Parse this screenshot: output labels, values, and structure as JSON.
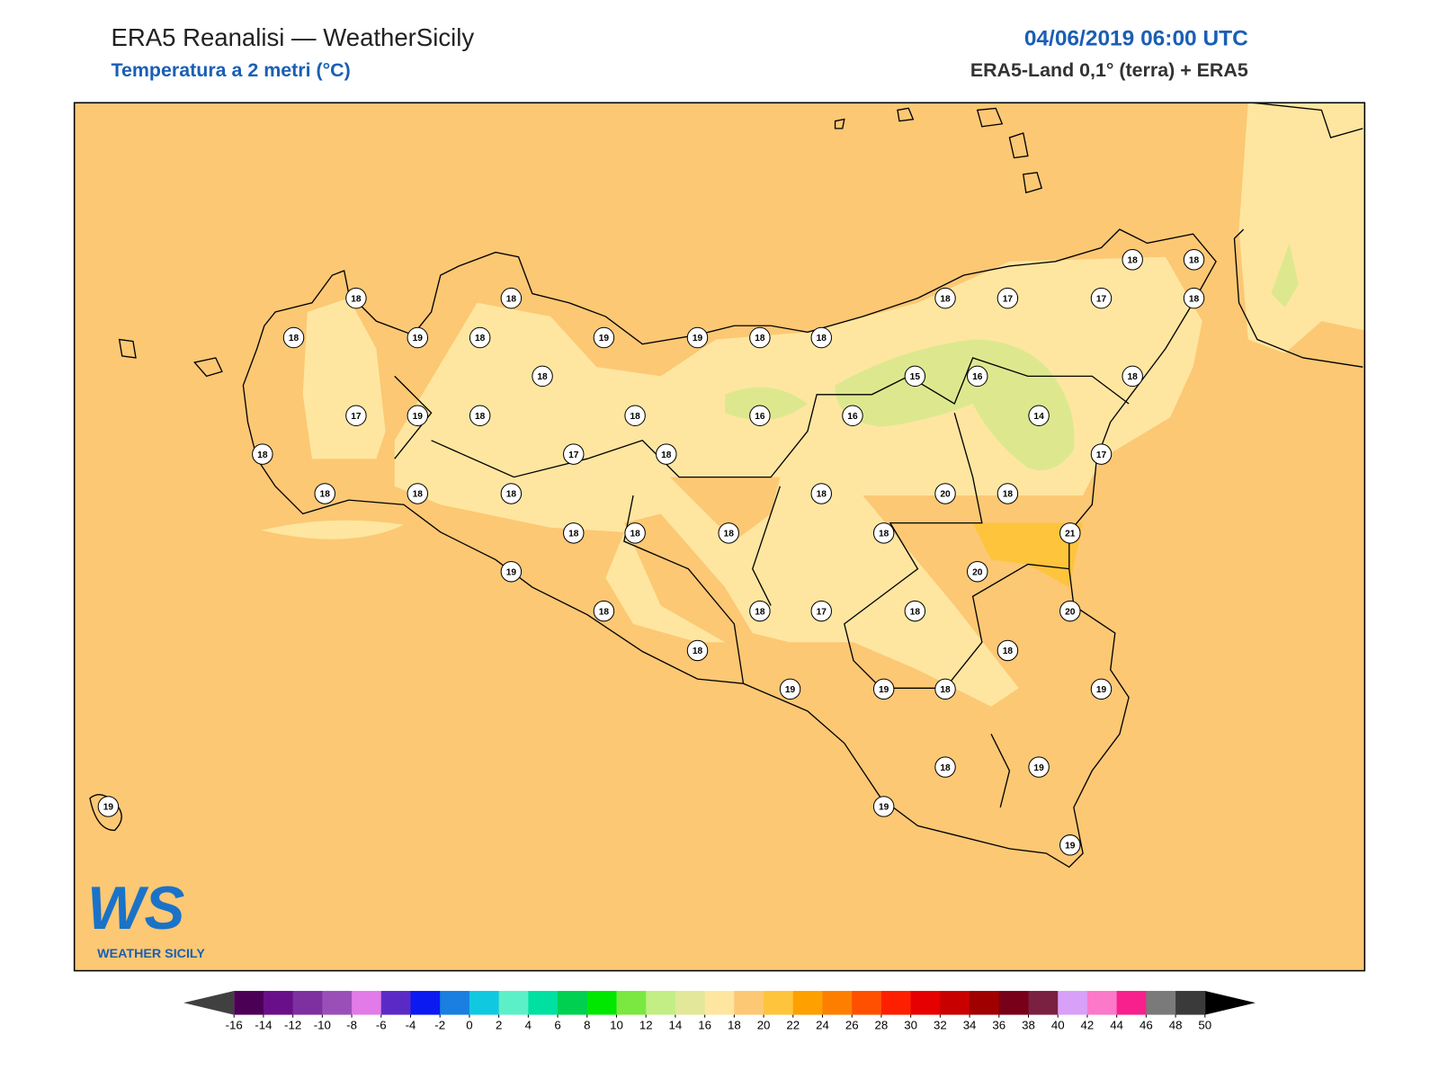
{
  "header": {
    "title": "ERA5 Reanalisi — WeatherSicily",
    "subtitle": "Temperatura a 2 metri (°C)",
    "datetime": "04/06/2019 06:00 UTC",
    "source": "ERA5-Land 0,1° (terra) + ERA5"
  },
  "stations": [
    18,
    18,
    19,
    18,
    18,
    19,
    19,
    18,
    18,
    18,
    17,
    19,
    18,
    18,
    16,
    16,
    15,
    16,
    14,
    18,
    17,
    17,
    18,
    18,
    18,
    18,
    17,
    18,
    18,
    18,
    18,
    17,
    18,
    18,
    20,
    18,
    18,
    18,
    18,
    18,
    21,
    19,
    20,
    18,
    18,
    17,
    18,
    20,
    18,
    18,
    19,
    19,
    18,
    19,
    18,
    19,
    19,
    19,
    19
  ],
  "colorbar": {
    "ticks": [
      -16,
      -14,
      -12,
      -10,
      -8,
      -6,
      -4,
      -2,
      0,
      2,
      4,
      6,
      8,
      10,
      12,
      14,
      16,
      18,
      20,
      22,
      24,
      26,
      28,
      30,
      32,
      34,
      36,
      38,
      40,
      42,
      44,
      46,
      48,
      50
    ],
    "colors": [
      "#4b0055",
      "#6a0f8a",
      "#7e2fa0",
      "#9a4fb8",
      "#e27ae8",
      "#5b2ac6",
      "#0a1af0",
      "#1a7fe0",
      "#10c8e0",
      "#5cf0c8",
      "#00e0a0",
      "#00d050",
      "#00e800",
      "#7ae840",
      "#c2ee84",
      "#e2e898",
      "#fee6a0",
      "#fcc874",
      "#fec43c",
      "#fea000",
      "#fe7f00",
      "#fe5000",
      "#fe1e00",
      "#e60000",
      "#c80000",
      "#a00000",
      "#780018",
      "#7a2040",
      "#d8a0f8",
      "#fc78c8",
      "#f8208c",
      "#7a7a7a",
      "#3a3a3a"
    ],
    "under": "#404040",
    "over": "#000000"
  },
  "logo": {
    "mark": "WS",
    "name": "WEATHER SICILY"
  }
}
